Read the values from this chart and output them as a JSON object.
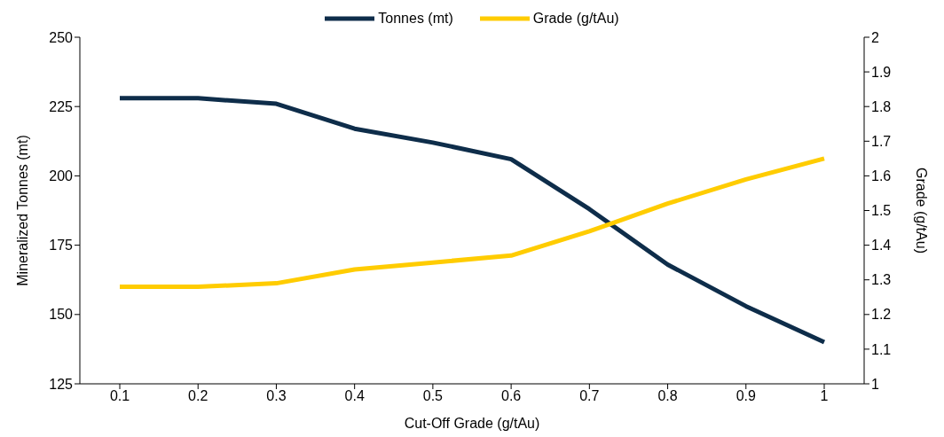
{
  "chart_data": {
    "type": "line",
    "xlabel": "Cut-Off Grade (g/tAu)",
    "ylabel": "Mineralized Tonnes (mt)",
    "y2label": "Grade (g/tAu)",
    "categories": [
      "0.1",
      "0.2",
      "0.3",
      "0.4",
      "0.5",
      "0.6",
      "0.7",
      "0.8",
      "0.9",
      "1"
    ],
    "series": [
      {
        "name": "Tonnes (mt)",
        "color": "#0e2d4a",
        "values": [
          228,
          228,
          226,
          217,
          212,
          206,
          188,
          168,
          153,
          140
        ]
      },
      {
        "name": "Grade (g/tAu)",
        "color": "#ffcc00",
        "axis": "y2",
        "values": [
          1.28,
          1.28,
          1.29,
          1.33,
          1.35,
          1.37,
          1.44,
          1.52,
          1.59,
          1.65
        ]
      }
    ],
    "ylim": [
      125,
      250
    ],
    "yticks": [
      125,
      150,
      175,
      200,
      225,
      250
    ],
    "y2lim": [
      1,
      2
    ],
    "y2ticks": [
      1,
      1.1,
      1.2,
      1.3,
      1.4,
      1.5,
      1.6,
      1.7,
      1.8,
      1.9,
      2
    ],
    "grid": false,
    "legend": "top",
    "marker": "none",
    "line_style": "solid"
  }
}
